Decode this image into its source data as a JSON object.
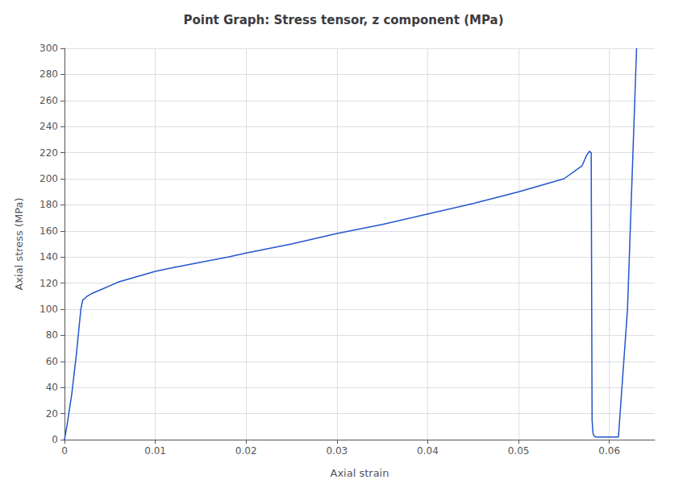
{
  "chart_data": {
    "type": "line",
    "title": "Point Graph: Stress tensor, z component (MPa)",
    "xlabel": "Axial strain",
    "ylabel": "Axial stress (MPa)",
    "xlim": [
      0,
      0.065
    ],
    "ylim": [
      0,
      300
    ],
    "xticks": [
      0,
      0.01,
      0.02,
      0.03,
      0.04,
      0.05,
      0.06
    ],
    "yticks": [
      0,
      20,
      40,
      60,
      80,
      100,
      120,
      140,
      160,
      180,
      200,
      220,
      240,
      260,
      280,
      300
    ],
    "color": "#2255cc",
    "grid": true,
    "x": [
      0.0,
      0.0003,
      0.0008,
      0.0013,
      0.0018,
      0.002,
      0.0022,
      0.0025,
      0.003,
      0.004,
      0.005,
      0.006,
      0.007,
      0.008,
      0.009,
      0.01,
      0.012,
      0.015,
      0.018,
      0.02,
      0.025,
      0.03,
      0.035,
      0.04,
      0.045,
      0.05,
      0.055,
      0.057,
      0.0575,
      0.0578,
      0.058,
      0.0581,
      0.0582,
      0.0583,
      0.0585,
      0.059,
      0.06,
      0.061,
      0.062,
      0.063
    ],
    "values": [
      0.0,
      12,
      35,
      65,
      100,
      107,
      108,
      110,
      112,
      115,
      118,
      121,
      123,
      125,
      127,
      129,
      132,
      136,
      140,
      143,
      150,
      158,
      165,
      173,
      181,
      190,
      200,
      210,
      218,
      221,
      220,
      15,
      5,
      3,
      2,
      2,
      2,
      2,
      100,
      300
    ]
  }
}
